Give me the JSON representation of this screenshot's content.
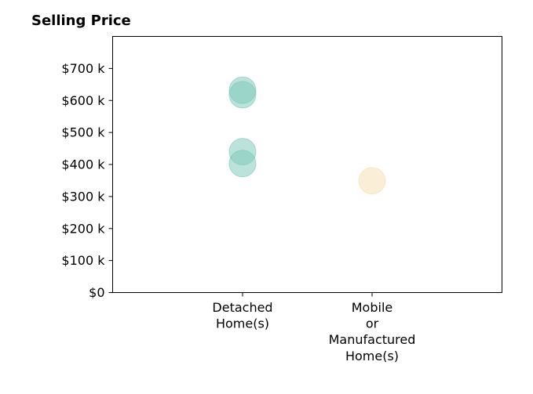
{
  "chart_data": {
    "type": "scatter",
    "title": "Selling Price",
    "xlabel": "",
    "ylabel": "",
    "categories": [
      [
        "Detached",
        "Home(s)"
      ],
      [
        "Mobile",
        "or",
        "Manufactured",
        "Home(s)"
      ]
    ],
    "ylim": [
      0,
      800000
    ],
    "yticks": [
      0,
      100000,
      200000,
      300000,
      400000,
      500000,
      600000,
      700000
    ],
    "ytick_labels": [
      "$0",
      "$100 k",
      "$200 k",
      "$300 k",
      "$400 k",
      "$500 k",
      "$600 k",
      "$700 k"
    ],
    "grid": false,
    "points": [
      {
        "category": 0,
        "value": 632000,
        "color": "#7ac7b8"
      },
      {
        "category": 0,
        "value": 618000,
        "color": "#7ac7b8"
      },
      {
        "category": 0,
        "value": 440000,
        "color": "#7ac7b8"
      },
      {
        "category": 0,
        "value": 403000,
        "color": "#7ac7b8"
      },
      {
        "category": 1,
        "value": 349000,
        "color": "#f5deb0"
      }
    ]
  }
}
